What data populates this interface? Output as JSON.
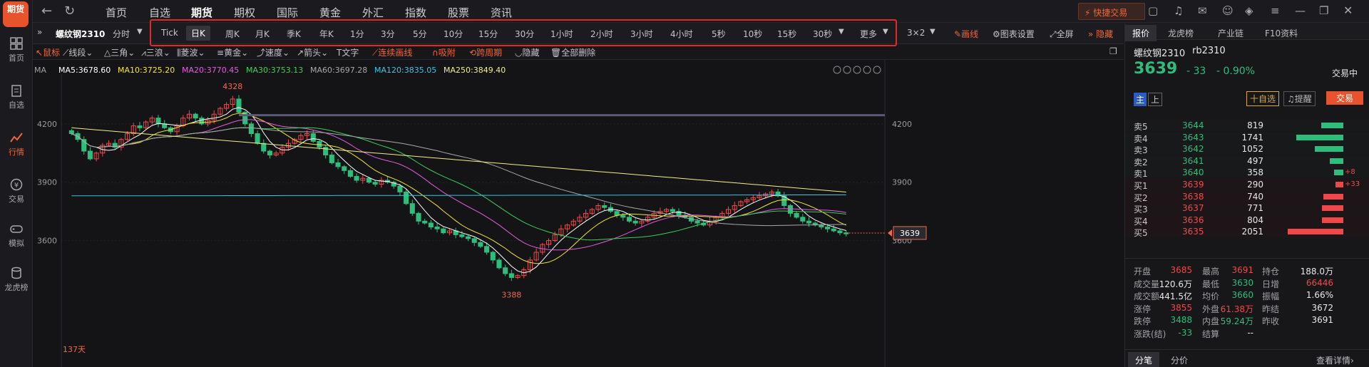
{
  "app": {
    "logo_text": "期货"
  },
  "leftnav": [
    {
      "label": "首页"
    },
    {
      "label": "自选"
    },
    {
      "label": "行情"
    },
    {
      "label": "交易"
    },
    {
      "label": "模拟"
    },
    {
      "label": "龙虎榜"
    }
  ],
  "topnav": {
    "items": [
      "首页",
      "自选",
      "期货",
      "期权",
      "国际",
      "黄金",
      "外汇",
      "指数",
      "股票",
      "资讯"
    ],
    "quick_trade": "快捷交易"
  },
  "toolbar": {
    "symbol": "螺纹钢2310",
    "timeshare": "分时",
    "periods": [
      "Tick",
      "日K",
      "周K",
      "月K",
      "季K",
      "年K",
      "1分",
      "3分",
      "5分",
      "10分",
      "15分",
      "30分",
      "1小时",
      "2小时",
      "3小时",
      "4小时",
      "5秒",
      "10秒",
      "15秒",
      "30秒"
    ],
    "more": "更多",
    "layout": "3×2",
    "draw": "画线",
    "settings": "图表设置",
    "fullscreen": "全屏",
    "hide": "隐藏"
  },
  "drawbar": {
    "items": [
      "鼠标",
      "线段",
      "三角",
      "三浪",
      "菱波",
      "黄金",
      "速度",
      "箭头",
      "文字",
      "连续画线",
      "吸附",
      "跨周期",
      "隐藏",
      "全部删除"
    ]
  },
  "chart_data": {
    "type": "candlestick",
    "ma_label": "MA",
    "ma": [
      {
        "name": "MA5",
        "value": "3678.60",
        "color": "#ffffff"
      },
      {
        "name": "MA10",
        "value": "3725.20",
        "color": "#f5e43a"
      },
      {
        "name": "MA20",
        "value": "3770.45",
        "color": "#e55be0"
      },
      {
        "name": "MA30",
        "value": "3753.13",
        "color": "#3ccf5a"
      },
      {
        "name": "MA60",
        "value": "3697.28",
        "color": "#a8a8a8"
      },
      {
        "name": "MA120",
        "value": "3835.05",
        "color": "#36c5e8"
      },
      {
        "name": "MA250",
        "value": "3849.40",
        "color": "#f2ef8a"
      }
    ],
    "y_ticks": [
      "4200",
      "3900",
      "3600"
    ],
    "ylim": [
      3320,
      4390
    ],
    "high_label": "4328",
    "low_label": "3388",
    "current_price": "3639",
    "days_label": "137天",
    "close": [
      4150,
      4120,
      4060,
      4020,
      4050,
      4090,
      4100,
      4080,
      4120,
      4150,
      4190,
      4180,
      4210,
      4230,
      4200,
      4180,
      4160,
      4190,
      4230,
      4250,
      4230,
      4200,
      4220,
      4250,
      4280,
      4300,
      4328,
      4260,
      4200,
      4150,
      4100,
      4060,
      4040,
      4050,
      4080,
      4100,
      4120,
      4140,
      4150,
      4110,
      4080,
      4040,
      4000,
      3980,
      3960,
      3930,
      3910,
      3920,
      3900,
      3890,
      3910,
      3900,
      3880,
      3850,
      3790,
      3740,
      3700,
      3690,
      3670,
      3660,
      3640,
      3650,
      3630,
      3620,
      3610,
      3590,
      3570,
      3540,
      3500,
      3460,
      3430,
      3410,
      3420,
      3450,
      3500,
      3540,
      3580,
      3600,
      3630,
      3660,
      3680,
      3700,
      3720,
      3740,
      3760,
      3780,
      3770,
      3750,
      3730,
      3720,
      3700,
      3690,
      3700,
      3720,
      3740,
      3750,
      3760,
      3750,
      3730,
      3720,
      3700,
      3690,
      3680,
      3700,
      3720,
      3740,
      3760,
      3780,
      3800,
      3810,
      3820,
      3830,
      3840,
      3850,
      3830,
      3780,
      3740,
      3720,
      3700,
      3690,
      3680,
      3670,
      3660,
      3650,
      3640,
      3639
    ]
  },
  "quote": {
    "tabs": [
      "报价",
      "龙虎榜",
      "产业链",
      "F10资料"
    ],
    "name": "螺纹钢2310",
    "code": "rb2310",
    "price": "3639",
    "change": "- 33",
    "pct": "- 0.90%",
    "status": "交易中",
    "badge_main": "主",
    "badge_up": "上",
    "btn_watch": "十自选",
    "btn_alert": "提醒",
    "btn_trade": "交易",
    "asks": [
      {
        "label": "卖5",
        "price": "3644",
        "vol": "819",
        "chg": "",
        "bar": 0.4
      },
      {
        "label": "卖4",
        "price": "3643",
        "vol": "1741",
        "chg": "",
        "bar": 0.85
      },
      {
        "label": "卖3",
        "price": "3642",
        "vol": "1052",
        "chg": "",
        "bar": 0.51
      },
      {
        "label": "卖2",
        "price": "3641",
        "vol": "497",
        "chg": "",
        "bar": 0.24
      },
      {
        "label": "卖1",
        "price": "3640",
        "vol": "358",
        "chg": "+8",
        "bar": 0.17
      }
    ],
    "bids": [
      {
        "label": "买1",
        "price": "3639",
        "vol": "290",
        "chg": "+33",
        "bar": 0.14
      },
      {
        "label": "买2",
        "price": "3638",
        "vol": "740",
        "chg": "",
        "bar": 0.36
      },
      {
        "label": "买3",
        "price": "3637",
        "vol": "771",
        "chg": "",
        "bar": 0.38
      },
      {
        "label": "买4",
        "price": "3636",
        "vol": "804",
        "chg": "",
        "bar": 0.39
      },
      {
        "label": "买5",
        "price": "3635",
        "vol": "2051",
        "chg": "",
        "bar": 1.0
      }
    ],
    "stats": [
      [
        [
          "开盘",
          "3685",
          "red"
        ],
        [
          "最高",
          "3691",
          "red"
        ],
        [
          "持仓",
          "188.0万",
          "wht"
        ]
      ],
      [
        [
          "成交量",
          "120.6万",
          "wht"
        ],
        [
          "最低",
          "3630",
          "grn"
        ],
        [
          "日增",
          "66446",
          "red"
        ]
      ],
      [
        [
          "成交额",
          "441.5亿",
          "wht"
        ],
        [
          "均价",
          "3660",
          "grn"
        ],
        [
          "振幅",
          "1.66%",
          "wht"
        ]
      ],
      [
        [
          "涨停",
          "3855",
          "red"
        ],
        [
          "外盘",
          "61.38万",
          "red"
        ],
        [
          "昨结",
          "3672",
          "wht"
        ]
      ],
      [
        [
          "跌停",
          "3488",
          "grn"
        ],
        [
          "内盘",
          "59.24万",
          "grn"
        ],
        [
          "昨收",
          "3691",
          "wht"
        ]
      ],
      [
        [
          "涨跌(结)",
          "-33",
          "grn"
        ],
        [
          "结算",
          "--",
          "wht"
        ],
        [
          "",
          "",
          " "
        ]
      ]
    ],
    "bottom_tabs": [
      "分笔",
      "分价"
    ],
    "detail_link": "查看详情›"
  }
}
